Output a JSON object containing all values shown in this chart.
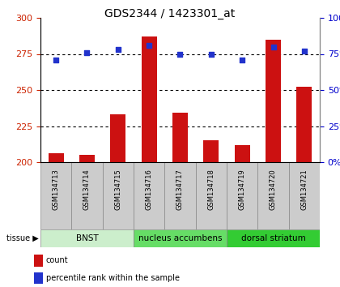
{
  "title": "GDS2344 / 1423301_at",
  "samples": [
    "GSM134713",
    "GSM134714",
    "GSM134715",
    "GSM134716",
    "GSM134717",
    "GSM134718",
    "GSM134719",
    "GSM134720",
    "GSM134721"
  ],
  "counts": [
    206,
    205,
    233,
    287,
    234,
    215,
    212,
    285,
    252
  ],
  "percentiles": [
    71,
    76,
    78,
    81,
    75,
    75,
    71,
    80,
    77
  ],
  "ylim_left": [
    200,
    300
  ],
  "ylim_right": [
    0,
    100
  ],
  "yticks_left": [
    200,
    225,
    250,
    275,
    300
  ],
  "yticks_right": [
    0,
    25,
    50,
    75,
    100
  ],
  "bar_color": "#cc1111",
  "dot_color": "#2233cc",
  "bar_bottom": 200,
  "tissues": [
    {
      "label": "BNST",
      "start": 0,
      "end": 3,
      "color": "#cceecc"
    },
    {
      "label": "nucleus accumbens",
      "start": 3,
      "end": 6,
      "color": "#66dd66"
    },
    {
      "label": "dorsal striatum",
      "start": 6,
      "end": 9,
      "color": "#33cc33"
    }
  ],
  "tissue_label": "tissue",
  "legend_count_label": "count",
  "legend_pct_label": "percentile rank within the sample",
  "grid_color": "black",
  "sample_box_color": "#cccccc",
  "tick_label_color_left": "#cc2200",
  "tick_label_color_right": "#0000cc",
  "title_fontsize": 10,
  "tick_fontsize": 8,
  "sample_fontsize": 6,
  "tissue_fontsize": 7.5,
  "legend_fontsize": 7
}
